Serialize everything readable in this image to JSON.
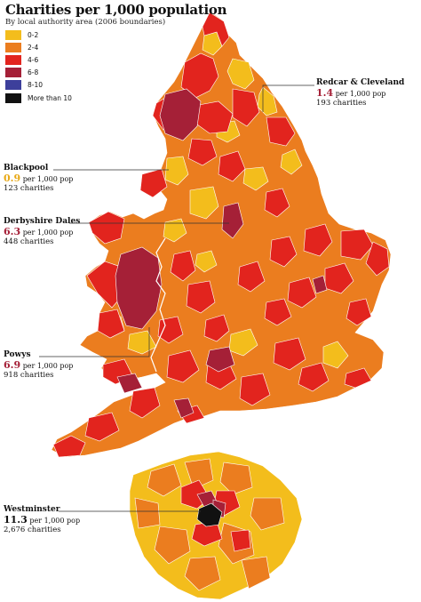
{
  "title": "Charities per 1,000 population",
  "subtitle": "By local authority area (2006 boundaries)",
  "colors": {
    "c0_2": "#f3bd1c",
    "c2_4": "#eb7d1f",
    "c4_6": "#e2241e",
    "c6_8": "#a52037",
    "c8_10": "#3d3f9b",
    "c10plus": "#111111"
  },
  "legend": [
    {
      "label": "0-2",
      "color": "#f3bd1c"
    },
    {
      "label": "2-4",
      "color": "#eb7d1f"
    },
    {
      "label": "4-6",
      "color": "#e2241e"
    },
    {
      "label": "6-8",
      "color": "#a52037"
    },
    {
      "label": "8-10",
      "color": "#3d3f9b"
    },
    {
      "label": "More than 10",
      "color": "#111111"
    }
  ],
  "callouts": {
    "redcar": {
      "name": "Redcar & Cleveland",
      "value": "1.4",
      "unit": "per 1,000 pop",
      "count": "193 charities",
      "value_color": "#a52037"
    },
    "blackpool": {
      "name": "Blackpool",
      "value": "0.9",
      "unit": "per 1,000 pop",
      "count": "123 charities",
      "value_color": "#e8a917"
    },
    "derbyshire": {
      "name": "Derbyshire Dales",
      "value": "6.3",
      "unit": "per 1,000 pop",
      "count": "448 charities",
      "value_color": "#a52037"
    },
    "powys": {
      "name": "Powys",
      "value": "6.9",
      "unit": "per 1,000 pop",
      "count": "918 charities",
      "value_color": "#a52037"
    },
    "westminster": {
      "name": "Westminster",
      "value": "11.3",
      "unit": "per 1,000 pop",
      "count": "2,676 charities",
      "value_color": "#111111"
    }
  }
}
